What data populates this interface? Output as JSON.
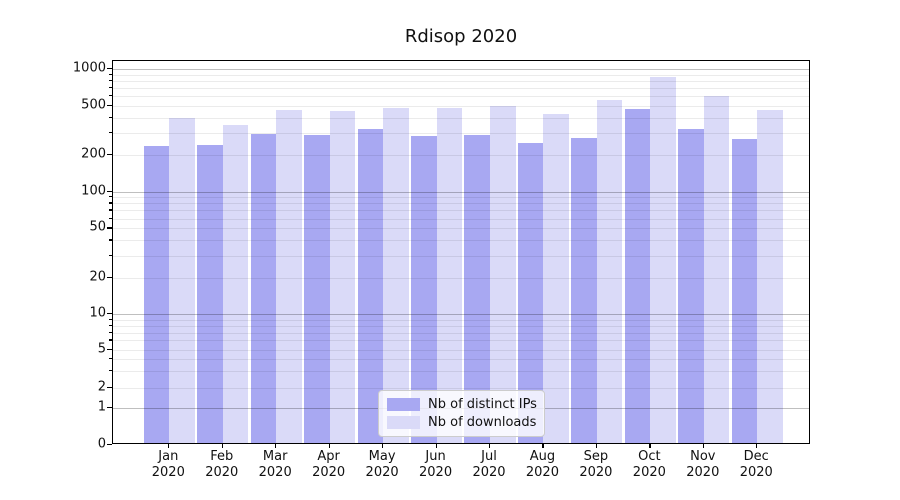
{
  "chart_data": {
    "type": "bar",
    "title": "Rdisop 2020",
    "categories": [
      {
        "month": "Jan",
        "year": "2020"
      },
      {
        "month": "Feb",
        "year": "2020"
      },
      {
        "month": "Mar",
        "year": "2020"
      },
      {
        "month": "Apr",
        "year": "2020"
      },
      {
        "month": "May",
        "year": "2020"
      },
      {
        "month": "Jun",
        "year": "2020"
      },
      {
        "month": "Jul",
        "year": "2020"
      },
      {
        "month": "Aug",
        "year": "2020"
      },
      {
        "month": "Sep",
        "year": "2020"
      },
      {
        "month": "Oct",
        "year": "2020"
      },
      {
        "month": "Nov",
        "year": "2020"
      },
      {
        "month": "Dec",
        "year": "2020"
      }
    ],
    "series": [
      {
        "name": "Nb of distinct IPs",
        "color": "#a8a8f2",
        "values": [
          228,
          235,
          285,
          280,
          312,
          275,
          282,
          240,
          267,
          462,
          316,
          260
        ]
      },
      {
        "name": "Nb of downloads",
        "color": "#dadaf8",
        "values": [
          390,
          340,
          450,
          445,
          465,
          470,
          482,
          416,
          546,
          840,
          583,
          452
        ]
      }
    ],
    "y_ticks": [
      0,
      1,
      2,
      5,
      10,
      20,
      50,
      100,
      200,
      500,
      1000
    ],
    "ylim": [
      0,
      1000
    ],
    "yscale": "log-like (custom ticks 0,1,2,5,10,20,50,100,200,500,1000)",
    "grid": "horizontal, light gray; darker at 1/10/100/1000",
    "legend_position": "lower center inside plot",
    "xlabel": "",
    "ylabel": ""
  }
}
